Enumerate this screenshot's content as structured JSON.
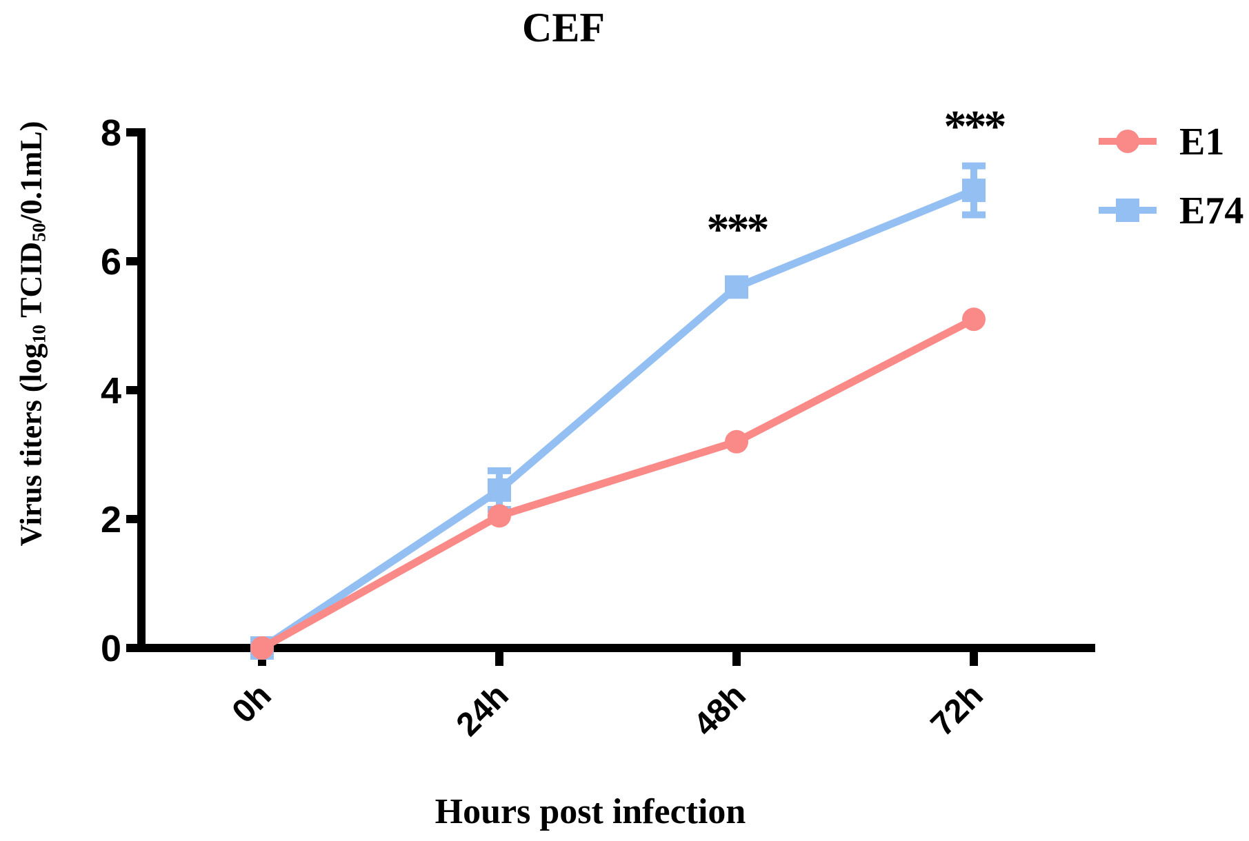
{
  "chart_data": {
    "type": "line",
    "title": "CEF",
    "xlabel": "Hours post infection",
    "ylabel": "Virus titers (log10 TCID50/0.1mL)",
    "ylabel_parts": [
      {
        "text": "Virus titers (log"
      },
      {
        "text": "10",
        "sub": true
      },
      {
        "text": " TCID"
      },
      {
        "text": "50",
        "sub": true
      },
      {
        "text": "/0.1mL)"
      }
    ],
    "categories": [
      "0h",
      "24h",
      "48h",
      "72h"
    ],
    "ylim": [
      0,
      8
    ],
    "yticks": [
      0,
      2,
      4,
      6,
      8
    ],
    "grid": false,
    "legend_position": "top-right",
    "axis_color": "#000000",
    "series": [
      {
        "name": "E1",
        "color": "#F98A88",
        "marker": "circle",
        "values": [
          0,
          2.05,
          3.2,
          5.1
        ],
        "errors": [
          0,
          0,
          0,
          0
        ]
      },
      {
        "name": "E74",
        "color": "#94BFF3",
        "marker": "square",
        "values": [
          0,
          2.45,
          5.6,
          7.1
        ],
        "errors": [
          0,
          0.3,
          0,
          0.38
        ]
      }
    ],
    "annotations": [
      {
        "text": "***",
        "category": "48h",
        "y": 6.26
      },
      {
        "text": "***",
        "category": "72h",
        "y": 7.86
      }
    ]
  }
}
